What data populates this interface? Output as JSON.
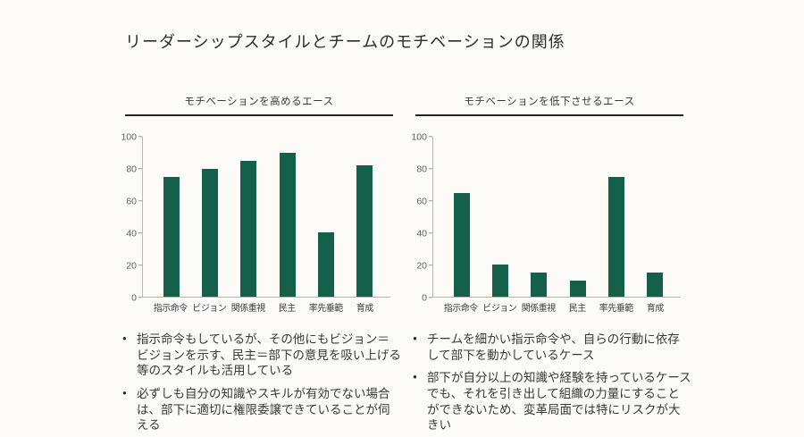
{
  "slide": {
    "title": "リーダーシップスタイルとチームのモチベーションの関係"
  },
  "colors": {
    "background": "#fcfbf8",
    "bar": "#15604a",
    "header_rule": "#262626",
    "axis": "#b9b9b3"
  },
  "chart_data": [
    {
      "type": "bar",
      "title": "モチベーションを高めるエース",
      "categories": [
        "指示命令",
        "ビジョン",
        "関係重視",
        "民主",
        "率先垂範",
        "育成"
      ],
      "values": [
        75,
        80,
        85,
        90,
        40,
        82
      ],
      "xlabel": "",
      "ylabel": "",
      "ylim": [
        0,
        100
      ],
      "yticks": [
        0,
        20,
        40,
        60,
        80,
        100
      ],
      "grid": false,
      "legend": false,
      "bar_color": "#15604a"
    },
    {
      "type": "bar",
      "title": "モチベーションを低下させるエース",
      "categories": [
        "指示命令",
        "ビジョン",
        "関係重視",
        "民主",
        "率先垂範",
        "育成"
      ],
      "values": [
        65,
        20,
        15,
        10,
        75,
        15
      ],
      "xlabel": "",
      "ylabel": "",
      "ylim": [
        0,
        100
      ],
      "yticks": [
        0,
        20,
        40,
        60,
        80,
        100
      ],
      "grid": false,
      "legend": false,
      "bar_color": "#15604a"
    }
  ],
  "panels": [
    {
      "bullets": [
        "指示命令もしているが、その他にもビジョン＝ビジョンを示す、民主＝部下の意見を吸い上げる等のスタイルも活用している",
        "必ずしも自分の知識やスキルが有効でない場合は、部下に適切に権限委譲できていることが伺える"
      ]
    },
    {
      "bullets": [
        "チームを細かい指示命令や、自らの行動に依存して部下を動かしているケース",
        "部下が自分以上の知識や経験を持っているケースでも、それを引き出して組織の力量にすることができないため、変革局面では特にリスクが大きい"
      ]
    }
  ]
}
